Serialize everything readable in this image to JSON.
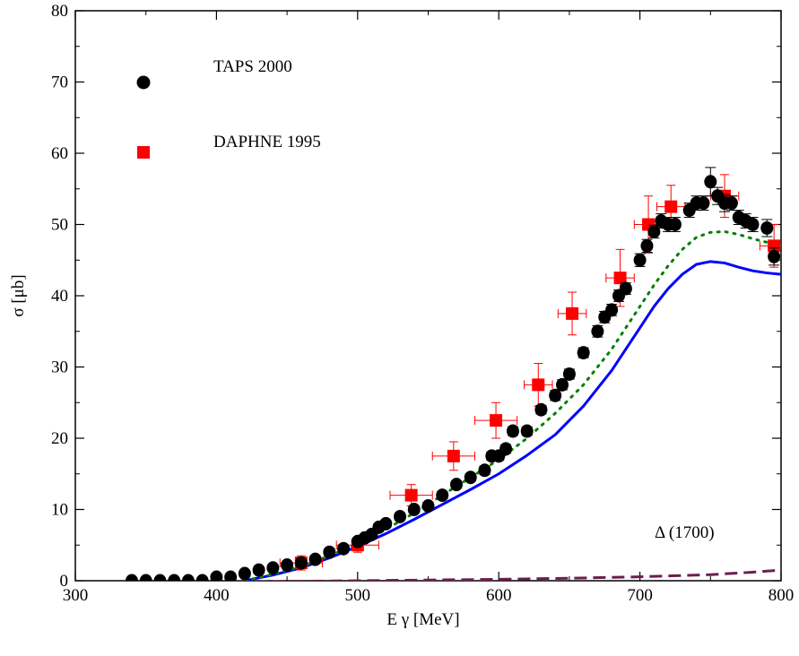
{
  "chart_data": {
    "type": "scatter",
    "xlabel": "E γ [MeV]",
    "ylabel": "σ [μb]",
    "xlim": [
      300,
      800
    ],
    "ylim": [
      0,
      80
    ],
    "x_ticks": [
      "300",
      "400",
      "500",
      "600",
      "700",
      "800"
    ],
    "y_ticks": [
      "0",
      "10",
      "20",
      "30",
      "40",
      "50",
      "60",
      "70",
      "80"
    ],
    "x_tick_values": [
      300,
      400,
      500,
      600,
      700,
      800
    ],
    "y_tick_values": [
      0,
      10,
      20,
      30,
      40,
      50,
      60,
      70,
      80
    ],
    "annotation": "Δ (1700)",
    "legend": [
      {
        "label": "TAPS 2000",
        "marker": "circle",
        "color": "#000000"
      },
      {
        "label": "DAPHNE 1995",
        "marker": "square",
        "color": "#ff0000"
      }
    ],
    "series": [
      {
        "name": "TAPS 2000",
        "marker": "circle",
        "color": "#000000",
        "x": [
          340,
          350,
          360,
          370,
          380,
          390,
          400,
          410,
          420,
          430,
          440,
          450,
          460,
          470,
          480,
          490,
          500,
          505,
          510,
          515,
          520,
          530,
          540,
          550,
          560,
          570,
          580,
          590,
          595,
          600,
          605,
          610,
          620,
          630,
          640,
          645,
          650,
          660,
          670,
          675,
          680,
          685,
          690,
          700,
          705,
          710,
          715,
          720,
          725,
          735,
          740,
          745,
          750,
          755,
          760,
          765,
          770,
          775,
          780,
          790,
          795
        ],
        "y": [
          0,
          0,
          0,
          0,
          0,
          0,
          0.5,
          0.5,
          1,
          1.5,
          1.8,
          2.2,
          2.5,
          3,
          4,
          4.5,
          5.5,
          6,
          6.5,
          7.5,
          8,
          9,
          10,
          10.5,
          12,
          13.5,
          14.5,
          15.5,
          17.5,
          17.5,
          18.5,
          21,
          21,
          24,
          26,
          27.5,
          29,
          32,
          35,
          37,
          38,
          40,
          41,
          45,
          47,
          49,
          50.5,
          50,
          50,
          52,
          53,
          53,
          56,
          54,
          53,
          53,
          51,
          50.5,
          50,
          49.5,
          45.5
        ],
        "yerr": [
          0.3,
          0.3,
          0.3,
          0.3,
          0.3,
          0.3,
          0.4,
          0.4,
          0.4,
          0.4,
          0.4,
          0.4,
          0.4,
          0.5,
          0.5,
          0.5,
          0.5,
          0.5,
          0.5,
          0.5,
          0.5,
          0.5,
          0.5,
          0.5,
          0.5,
          0.5,
          0.5,
          0.6,
          0.6,
          0.6,
          0.6,
          0.6,
          0.6,
          0.6,
          0.7,
          0.7,
          0.7,
          0.7,
          0.8,
          0.8,
          0.8,
          0.8,
          0.8,
          0.9,
          0.9,
          0.9,
          1,
          1,
          1,
          1,
          1,
          1,
          2,
          1.2,
          1.2,
          1,
          1,
          1,
          1,
          1.2,
          1.2
        ]
      },
      {
        "name": "DAPHNE 1995",
        "marker": "square",
        "color": "#ff0000",
        "x": [
          460,
          500,
          538,
          568,
          598,
          628,
          652,
          686,
          706,
          722,
          760,
          795
        ],
        "y": [
          2.5,
          5,
          12,
          17.5,
          22.5,
          27.5,
          37.5,
          42.5,
          50,
          52.5,
          54,
          47
        ],
        "xerr": [
          15,
          15,
          15,
          15,
          15,
          10,
          10,
          10,
          10,
          10,
          10,
          10
        ],
        "yerr": [
          1,
          1,
          1.5,
          2,
          2.5,
          3,
          3,
          4,
          4,
          3,
          3,
          3
        ]
      },
      {
        "type": "line",
        "style": "solid",
        "color": "#0000ff",
        "x": [
          420,
          440,
          460,
          480,
          500,
          520,
          540,
          560,
          580,
          600,
          620,
          640,
          660,
          680,
          700,
          710,
          720,
          730,
          740,
          750,
          760,
          770,
          780,
          790,
          800
        ],
        "y": [
          0,
          0.8,
          1.8,
          3.2,
          4.8,
          6.6,
          8.6,
          10.7,
          12.8,
          15,
          17.6,
          20.5,
          24.5,
          29.5,
          35.5,
          38.5,
          41,
          43,
          44.4,
          44.8,
          44.6,
          44,
          43.5,
          43.2,
          43
        ]
      },
      {
        "type": "line",
        "style": "dotted",
        "color": "#008000",
        "x": [
          420,
          440,
          460,
          480,
          500,
          520,
          540,
          560,
          580,
          600,
          620,
          640,
          660,
          680,
          700,
          710,
          720,
          730,
          740,
          750,
          760,
          770,
          780,
          790,
          800
        ],
        "y": [
          0,
          0.9,
          2,
          3.5,
          5.2,
          7.2,
          9.5,
          12,
          14.5,
          17,
          20,
          23.5,
          27.5,
          32.5,
          38.5,
          41.5,
          44.2,
          46.5,
          48.2,
          48.9,
          49,
          48.6,
          48,
          47.5,
          47
        ]
      },
      {
        "type": "line",
        "style": "dashed",
        "color": "#6b1e50",
        "x": [
          400,
          450,
          500,
          550,
          600,
          650,
          700,
          750,
          780,
          800
        ],
        "y": [
          -0.2,
          -0.1,
          0,
          0.1,
          0.2,
          0.35,
          0.55,
          0.85,
          1.2,
          1.5
        ]
      }
    ]
  }
}
